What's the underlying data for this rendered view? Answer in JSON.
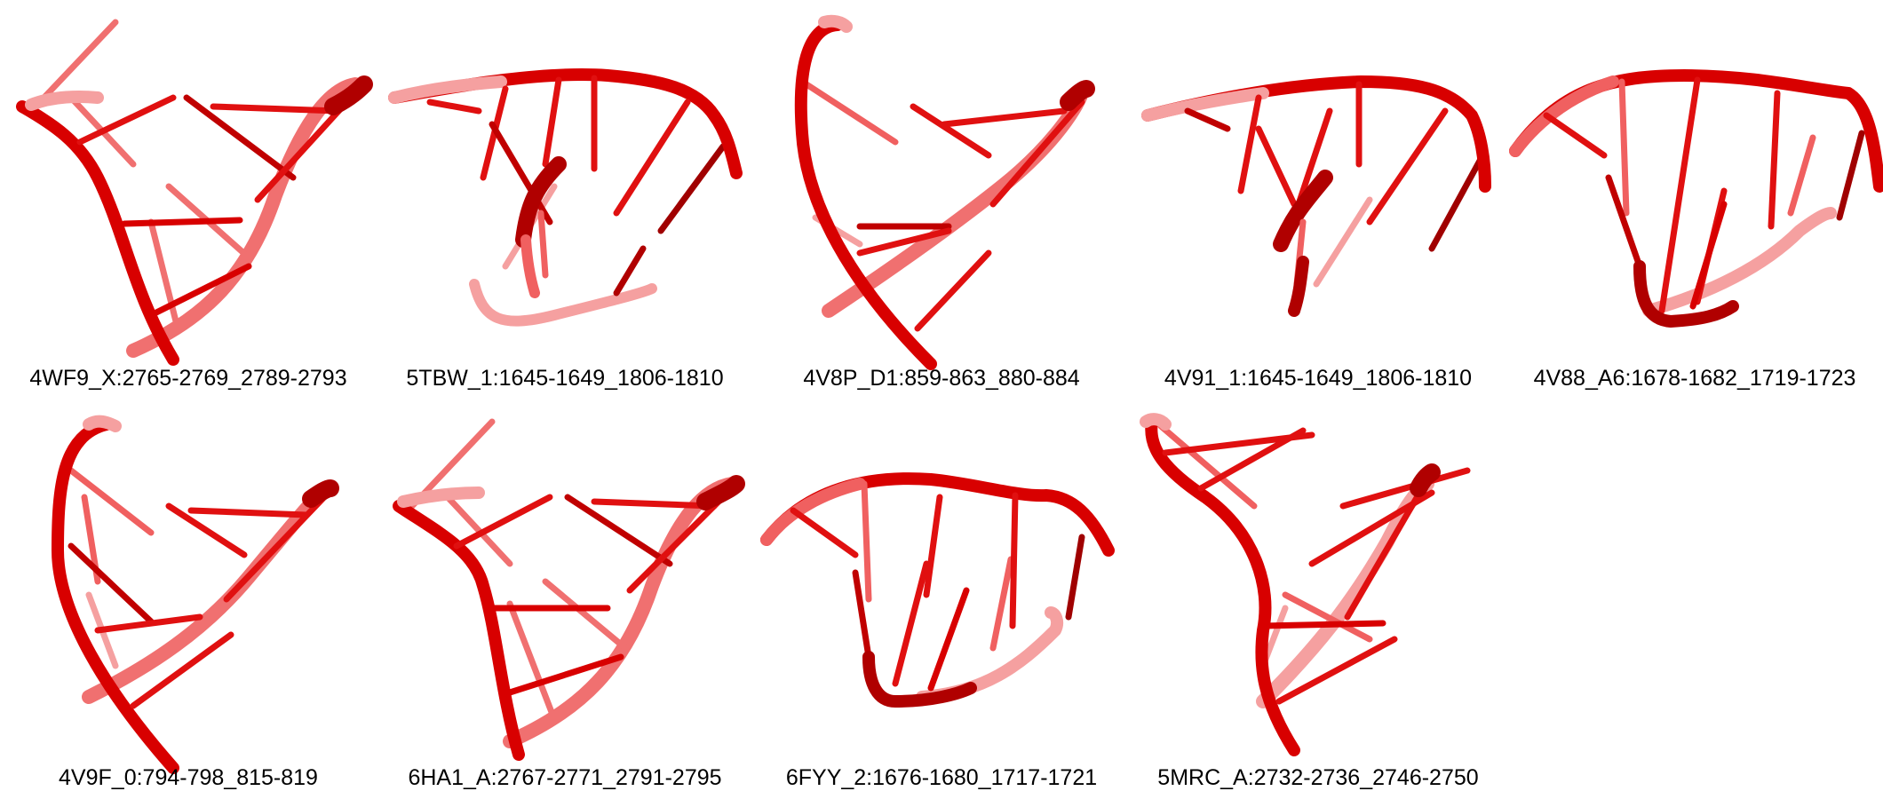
{
  "colors": {
    "strand_dark": "#b00000",
    "strand": "#e01010",
    "strand_light": "#f06060",
    "strand_faint": "#f8a0a0"
  },
  "panels": [
    {
      "label": "4WF9_X:2765-2769_2789-2793"
    },
    {
      "label": "5TBW_1:1645-1649_1806-1810"
    },
    {
      "label": "4V8P_D1:859-863_880-884"
    },
    {
      "label": "4V91_1:1645-1649_1806-1810"
    },
    {
      "label": "4V88_A6:1678-1682_1719-1723"
    },
    {
      "label": "4V9F_0:794-798_815-819"
    },
    {
      "label": "6HA1_A:2767-2771_2791-2795"
    },
    {
      "label": "6FYY_2:1676-1680_1717-1721"
    },
    {
      "label": "5MRC_A:2732-2736_2746-2750"
    }
  ]
}
